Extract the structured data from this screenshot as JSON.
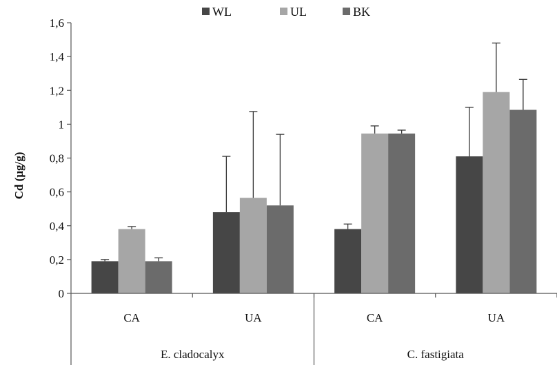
{
  "chart_data": {
    "type": "bar",
    "ylabel": "Cd (µg/g)",
    "ylim": [
      0,
      1.6
    ],
    "yticks": [
      "0",
      "0,2",
      "0,4",
      "0,6",
      "0,8",
      "1",
      "1,2",
      "1,4",
      "1,6"
    ],
    "grid": false,
    "legend_position": "top-center",
    "groups": [
      {
        "label": "E. cladocalyx",
        "categories": [
          "CA",
          "UA"
        ]
      },
      {
        "label": "C. fastigiata",
        "categories": [
          "CA",
          "UA"
        ]
      }
    ],
    "series": [
      {
        "name": "WL",
        "color": "#464646",
        "values": [
          0.19,
          0.48,
          0.38,
          0.81
        ],
        "errors": [
          0.01,
          0.33,
          0.03,
          0.29
        ]
      },
      {
        "name": "UL",
        "color": "#a6a6a6",
        "values": [
          0.38,
          0.565,
          0.945,
          1.19
        ],
        "errors": [
          0.015,
          0.51,
          0.045,
          0.29
        ]
      },
      {
        "name": "BK",
        "color": "#6b6b6b",
        "values": [
          0.19,
          0.52,
          0.945,
          1.085
        ],
        "errors": [
          0.02,
          0.42,
          0.02,
          0.18
        ]
      }
    ]
  }
}
